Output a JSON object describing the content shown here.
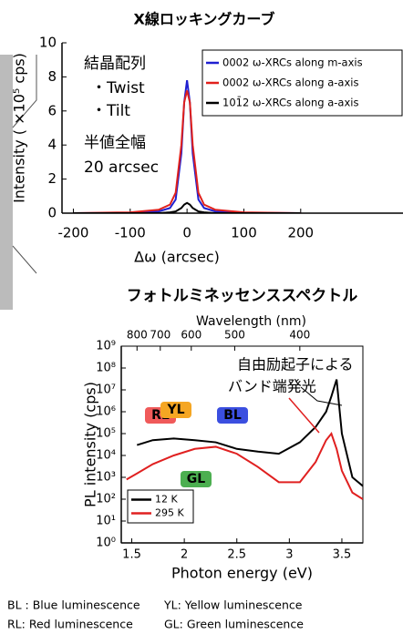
{
  "chart_data": [
    {
      "type": "line",
      "title": "X線ロッキングカーブ",
      "x_label": "Δω (arcsec)",
      "y_label": "Intensity ( ×10⁵ cps)",
      "x": [
        -200,
        -100,
        -50,
        -30,
        -20,
        -10,
        -5,
        0,
        5,
        10,
        20,
        30,
        50,
        100,
        200
      ],
      "series": [
        {
          "name": "0002 ω-XRCs along m-axis",
          "color": "#1f1fd0",
          "values": [
            0,
            0.02,
            0.1,
            0.3,
            0.8,
            3.5,
            6.5,
            7.8,
            6.5,
            3.5,
            0.8,
            0.3,
            0.1,
            0.02,
            0
          ]
        },
        {
          "name": "0002 ω-XRCs along a-axis",
          "color": "#e0201c",
          "values": [
            0,
            0.05,
            0.2,
            0.5,
            1.2,
            4,
            6.5,
            7.2,
            6.5,
            4,
            1.2,
            0.5,
            0.2,
            0.05,
            0
          ]
        },
        {
          "name": "101̄2 ω-XRCs along a-axis",
          "color": "#000000",
          "values": [
            0,
            0,
            0,
            0.05,
            0.1,
            0.3,
            0.5,
            0.6,
            0.5,
            0.3,
            0.1,
            0.05,
            0,
            0,
            0
          ]
        }
      ],
      "xlim": [
        -220,
        380
      ],
      "xticks": [
        -200,
        -100,
        0,
        100,
        200
      ],
      "ylim": [
        0,
        10
      ],
      "yticks": [
        0,
        2,
        4,
        6,
        8,
        10
      ],
      "legend": "upper right",
      "annotations": [
        "結晶配列",
        "・Twist",
        "・Tilt",
        "半値全幅",
        "20 arcsec"
      ]
    },
    {
      "type": "line",
      "title": "フォトルミネッセンススペクトル",
      "x_label": "Photon energy (eV)",
      "y_label": "PL intensity (cps)",
      "x2_label": "Wavelength (nm)",
      "x": [
        1.45,
        1.55,
        1.7,
        1.9,
        2.1,
        2.3,
        2.5,
        2.7,
        2.9,
        3.1,
        3.25,
        3.35,
        3.4,
        3.45,
        3.5,
        3.6,
        3.7
      ],
      "series": [
        {
          "name": "12 K",
          "color": "#000000",
          "values": [
            null,
            30000,
            50000,
            60000,
            50000,
            40000,
            20000,
            15000,
            12000,
            40000,
            200000,
            1000000,
            5000000,
            30000000,
            100000,
            1000,
            400
          ]
        },
        {
          "name": "295 K",
          "color": "#e02020",
          "values": [
            800,
            1500,
            4000,
            10000,
            20000,
            25000,
            12000,
            3000,
            600,
            600,
            5000,
            50000,
            100000,
            20000,
            2000,
            200,
            100
          ]
        }
      ],
      "xlim": [
        1.4,
        3.7
      ],
      "xticks": [
        1.5,
        2.0,
        2.5,
        3.0,
        3.5
      ],
      "x2lim": [
        885.7,
        335.1
      ],
      "x2_scale": "reciprocal",
      "x2ticks": [
        800,
        700,
        600,
        500,
        400
      ],
      "ylim": [
        1,
        1000000000
      ],
      "y_scale": "log",
      "yticks": [
        {
          "value": 1,
          "label": "10⁰"
        },
        {
          "value": 10,
          "label": "10¹"
        },
        {
          "value": 100,
          "label": "10²"
        },
        {
          "value": 1000,
          "label": "10³"
        },
        {
          "value": 10000,
          "label": "10⁴"
        },
        {
          "value": 100000,
          "label": "10⁵"
        },
        {
          "value": 1000000,
          "label": "10⁶"
        },
        {
          "value": 10000000,
          "label": "10⁷"
        },
        {
          "value": 100000000,
          "label": "10⁸"
        },
        {
          "value": 1000000000,
          "label": "10⁹"
        }
      ],
      "legend": "lower left",
      "annotations": [
        "自由励起子による",
        "バンド端発光"
      ],
      "band_labels": [
        {
          "text": "RL",
          "color": "#f05a5a"
        },
        {
          "text": "YL",
          "color": "#f5a623"
        },
        {
          "text": "BL",
          "color": "#3b4fe0"
        },
        {
          "text": "GL",
          "color": "#4caf50"
        }
      ]
    }
  ],
  "footer": [
    "BL : Blue luminescence",
    "YL: Yellow luminescence",
    "RL: Red luminescence",
    "GL: Green luminescence"
  ]
}
